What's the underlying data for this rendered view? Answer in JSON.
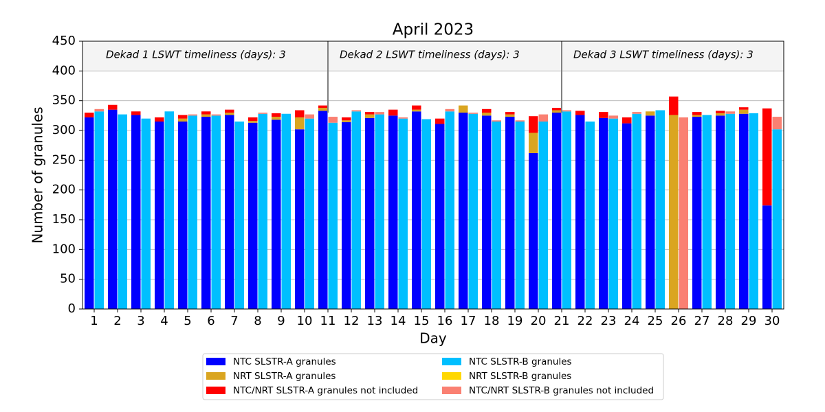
{
  "chart_data": {
    "type": "bar",
    "title": "April 2023",
    "xlabel": "Day",
    "ylabel": "Number of granules",
    "categories": [
      1,
      2,
      3,
      4,
      5,
      6,
      7,
      8,
      9,
      10,
      11,
      12,
      13,
      14,
      15,
      16,
      17,
      18,
      19,
      20,
      21,
      22,
      23,
      24,
      25,
      26,
      27,
      28,
      29,
      30
    ],
    "ylim": [
      0,
      450
    ],
    "yticks": [
      0,
      50,
      100,
      150,
      200,
      250,
      300,
      350,
      400,
      450
    ],
    "grid": true,
    "shade_ylim": [
      400,
      450
    ],
    "dividers": [
      10.5,
      20.5
    ],
    "annotations": [
      "Dekad 1 LSWT timeliness (days): 3",
      "Dekad 2 LSWT timeliness (days): 3",
      "Dekad 3 LSWT timeliness (days): 3"
    ],
    "legend": "lower center",
    "series": [
      {
        "name": "NTC SLSTR-A granules",
        "color": "#0000ff",
        "values": [
          322,
          335,
          326,
          315,
          315,
          323,
          326,
          313,
          318,
          302,
          333,
          314,
          321,
          325,
          332,
          311,
          330,
          325,
          323,
          262,
          330,
          326,
          321,
          312,
          325,
          0,
          323,
          325,
          328,
          174
        ]
      },
      {
        "name": "NRT SLSTR-A granules",
        "color": "#daa520",
        "values": [
          0,
          0,
          0,
          0,
          5,
          4,
          4,
          3,
          5,
          20,
          5,
          3,
          6,
          0,
          3,
          0,
          12,
          5,
          4,
          34,
          4,
          0,
          0,
          0,
          7,
          326,
          3,
          4,
          7,
          0
        ]
      },
      {
        "name": "NTC/NRT SLSTR-A granules not included",
        "color": "#ff0000",
        "values": [
          8,
          8,
          6,
          7,
          6,
          5,
          5,
          6,
          6,
          12,
          4,
          5,
          4,
          10,
          7,
          9,
          0,
          6,
          4,
          28,
          4,
          7,
          10,
          10,
          0,
          31,
          5,
          4,
          4,
          163
        ]
      },
      {
        "name": "NTC SLSTR-B granules",
        "color": "#00bfff",
        "values": [
          332,
          327,
          320,
          332,
          325,
          325,
          315,
          328,
          328,
          320,
          313,
          332,
          327,
          320,
          319,
          332,
          328,
          315,
          315,
          315,
          332,
          315,
          320,
          328,
          334,
          0,
          326,
          328,
          329,
          302
        ]
      },
      {
        "name": "NRT SLSTR-B granules",
        "color": "#ffd700",
        "values": [
          0,
          0,
          0,
          0,
          0,
          0,
          0,
          0,
          0,
          0,
          0,
          0,
          0,
          0,
          0,
          0,
          0,
          0,
          0,
          0,
          0,
          0,
          0,
          0,
          0,
          0,
          0,
          0,
          0,
          0
        ]
      },
      {
        "name": "NTC/NRT SLSTR-B granules not included",
        "color": "#fa8072",
        "values": [
          4,
          0,
          0,
          0,
          2,
          2,
          0,
          2,
          0,
          7,
          10,
          2,
          4,
          2,
          0,
          4,
          2,
          2,
          2,
          12,
          2,
          0,
          5,
          3,
          0,
          322,
          0,
          4,
          0,
          21
        ]
      }
    ]
  }
}
